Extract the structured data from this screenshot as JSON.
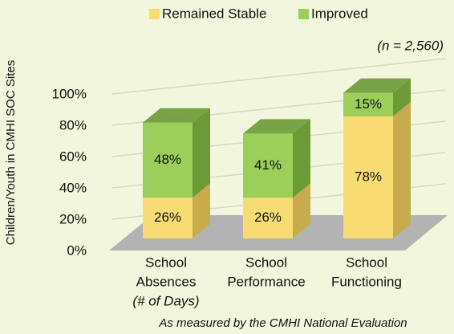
{
  "chart_data": {
    "type": "bar3d_stacked",
    "legend": "top",
    "annotation": "(n = 2,560)",
    "footnote": "As measured by the CMHI National Evaluation",
    "y_label": "Children/Youth in CMHI SOC Sites",
    "categories": [
      [
        "School",
        "Absences",
        "(# of Days)"
      ],
      [
        "School",
        "Performance"
      ],
      [
        "School",
        "Functioning"
      ]
    ],
    "series": [
      {
        "name": "Remained Stable",
        "color": "#f6dc72",
        "side_color": "#c8ab4c",
        "values": [
          26,
          26,
          78
        ],
        "value_labels": [
          "26%",
          "26%",
          "78%"
        ]
      },
      {
        "name": "Improved",
        "color": "#9ccf5a",
        "side_color": "#6c9a36",
        "values": [
          48,
          41,
          15
        ],
        "value_labels": [
          "48%",
          "41%",
          "15%"
        ]
      }
    ],
    "ylim": [
      0,
      100
    ],
    "yticks": [
      {
        "value": 0,
        "label": "0%"
      },
      {
        "value": 20,
        "label": "20%"
      },
      {
        "value": 40,
        "label": "40%"
      },
      {
        "value": 60,
        "label": "60%"
      },
      {
        "value": 80,
        "label": "80%"
      },
      {
        "value": 100,
        "label": "100%"
      }
    ],
    "grid": true
  }
}
